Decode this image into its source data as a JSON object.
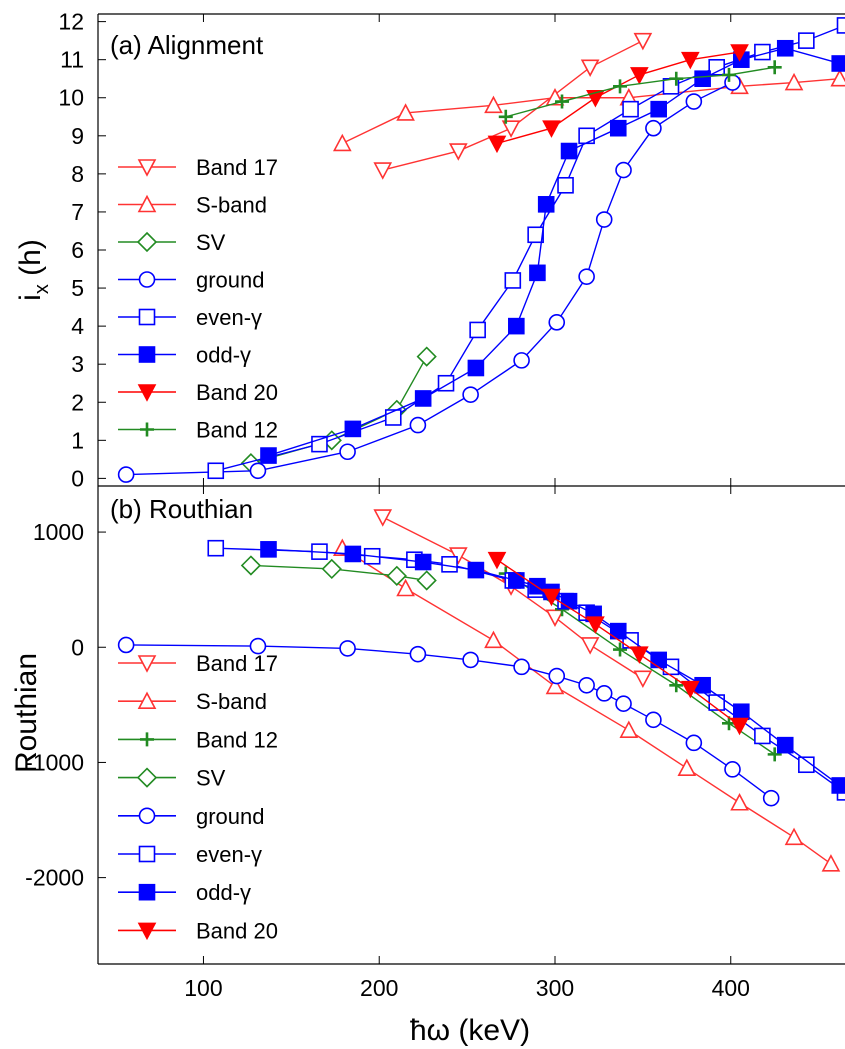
{
  "chart_data": [
    {
      "panel_label": "(a) Alignment",
      "type": "line",
      "xlabel": "ħω (keV)",
      "ylabel_main": "i",
      "ylabel_sub": "x",
      "ylabel_unit": "(h)",
      "xlim": [
        40,
        465
      ],
      "ylim": [
        -0.2,
        12.2
      ],
      "yticks": [
        0,
        1,
        2,
        3,
        4,
        5,
        6,
        7,
        8,
        9,
        10,
        11,
        12
      ],
      "legend_placement": "left",
      "legend_order": [
        "Band 17",
        "S-band",
        "SV",
        "ground",
        "even-γ",
        "odd-γ",
        "Band 20",
        "Band 12"
      ],
      "series": [
        {
          "name": "Band 17",
          "color": "#ff3333",
          "marker": "triangle-down-open",
          "x": [
            202,
            245,
            275,
            320,
            350
          ],
          "y": [
            8.1,
            8.6,
            9.2,
            10.8,
            11.5
          ]
        },
        {
          "name": "S-band",
          "color": "#ff3333",
          "marker": "triangle-up-open",
          "x": [
            179,
            215,
            265,
            300,
            342,
            405,
            436,
            462
          ],
          "y": [
            8.8,
            9.6,
            9.8,
            10.0,
            10.0,
            10.3,
            10.4,
            10.5
          ]
        },
        {
          "name": "SV",
          "color": "#228B22",
          "marker": "diamond-open",
          "x": [
            127,
            173,
            210,
            227
          ],
          "y": [
            0.4,
            1.0,
            1.8,
            3.2
          ]
        },
        {
          "name": "ground",
          "color": "#0000ff",
          "marker": "circle-open",
          "x": [
            56,
            131,
            182,
            222,
            252,
            281,
            301,
            318,
            328,
            339,
            356,
            379,
            401
          ],
          "y": [
            0.1,
            0.2,
            0.7,
            1.4,
            2.2,
            3.1,
            4.1,
            5.3,
            6.8,
            8.1,
            9.2,
            9.9,
            10.4
          ]
        },
        {
          "name": "even-γ",
          "color": "#0000ff",
          "marker": "square-open",
          "x": [
            107,
            166,
            208,
            238,
            256,
            276,
            289,
            306,
            318,
            343,
            366,
            392,
            418,
            443,
            465
          ],
          "y": [
            0.2,
            0.9,
            1.6,
            2.5,
            3.9,
            5.2,
            6.4,
            7.7,
            9.0,
            9.7,
            10.3,
            10.8,
            11.2,
            11.5,
            11.9
          ]
        },
        {
          "name": "odd-γ",
          "color": "#0000ff",
          "marker": "square-filled",
          "x": [
            137,
            185,
            225,
            255,
            278,
            290,
            295,
            308,
            336,
            359,
            384,
            406,
            431,
            462
          ],
          "y": [
            0.6,
            1.3,
            2.1,
            2.9,
            4.0,
            5.4,
            7.2,
            8.6,
            9.2,
            9.7,
            10.5,
            11.0,
            11.3,
            10.9
          ]
        },
        {
          "name": "Band 20",
          "color": "#ff0000",
          "marker": "triangle-down-filled",
          "x": [
            267,
            298,
            323,
            348,
            377,
            405
          ],
          "y": [
            8.8,
            9.2,
            10.0,
            10.6,
            11.0,
            11.2
          ]
        },
        {
          "name": "Band 12",
          "color": "#228B22",
          "marker": "plus",
          "x": [
            272,
            304,
            337,
            369,
            399,
            425
          ],
          "y": [
            9.5,
            9.9,
            10.3,
            10.5,
            10.6,
            10.8
          ]
        }
      ]
    },
    {
      "panel_label": "(b) Routhian",
      "type": "line",
      "xlabel": "ħω (keV)",
      "ylabel": "Routhian",
      "xlim": [
        40,
        465
      ],
      "ylim": [
        -2750,
        1400
      ],
      "yticks": [
        1000,
        0,
        -1000,
        -2000
      ],
      "ytick_labels": [
        "1000",
        "0",
        "-1000",
        "-2000"
      ],
      "xticks": [
        100,
        200,
        300,
        400
      ],
      "legend_placement": "lower-left",
      "legend_order": [
        "Band 17",
        "S-band",
        "Band 12",
        "SV",
        "ground",
        "even-γ",
        "odd-γ",
        "Band 20"
      ],
      "series": [
        {
          "name": "Band 17",
          "color": "#ff3333",
          "marker": "triangle-down-open",
          "x": [
            202,
            245,
            275,
            300,
            320,
            350
          ],
          "y": [
            1130,
            800,
            530,
            260,
            20,
            -270
          ]
        },
        {
          "name": "S-band",
          "color": "#ff3333",
          "marker": "triangle-up-open",
          "x": [
            179,
            215,
            265,
            300,
            342,
            375,
            405,
            436,
            457
          ],
          "y": [
            860,
            510,
            60,
            -340,
            -720,
            -1050,
            -1350,
            -1650,
            -1880
          ]
        },
        {
          "name": "Band 12",
          "color": "#228B22",
          "marker": "plus",
          "x": [
            272,
            304,
            337,
            369,
            399,
            425
          ],
          "y": [
            640,
            330,
            -20,
            -330,
            -660,
            -930
          ]
        },
        {
          "name": "SV",
          "color": "#228B22",
          "marker": "diamond-open",
          "x": [
            127,
            173,
            210,
            227
          ],
          "y": [
            710,
            680,
            620,
            580
          ]
        },
        {
          "name": "ground",
          "color": "#0000ff",
          "marker": "circle-open",
          "x": [
            56,
            131,
            182,
            222,
            252,
            281,
            301,
            318,
            328,
            339,
            356,
            379,
            401,
            423
          ],
          "y": [
            20,
            10,
            -10,
            -60,
            -110,
            -170,
            -250,
            -330,
            -400,
            -490,
            -630,
            -830,
            -1060,
            -1310
          ]
        },
        {
          "name": "even-γ",
          "color": "#0000ff",
          "marker": "square-open",
          "x": [
            107,
            166,
            196,
            220,
            240,
            276,
            289,
            306,
            318,
            343,
            366,
            392,
            418,
            443,
            465
          ],
          "y": [
            860,
            830,
            790,
            760,
            720,
            580,
            500,
            400,
            300,
            60,
            -170,
            -480,
            -770,
            -1020,
            -1260
          ]
        },
        {
          "name": "odd-γ",
          "color": "#0000ff",
          "marker": "square-filled",
          "x": [
            137,
            185,
            225,
            255,
            278,
            290,
            298,
            308,
            322,
            336,
            359,
            384,
            406,
            431,
            462
          ],
          "y": [
            850,
            810,
            740,
            670,
            580,
            530,
            480,
            400,
            290,
            140,
            -110,
            -330,
            -560,
            -850,
            -1200
          ]
        },
        {
          "name": "Band 20",
          "color": "#ff0000",
          "marker": "triangle-down-filled",
          "x": [
            267,
            298,
            323,
            348,
            377,
            405
          ],
          "y": [
            760,
            440,
            200,
            -60,
            -360,
            -680
          ]
        }
      ]
    }
  ]
}
